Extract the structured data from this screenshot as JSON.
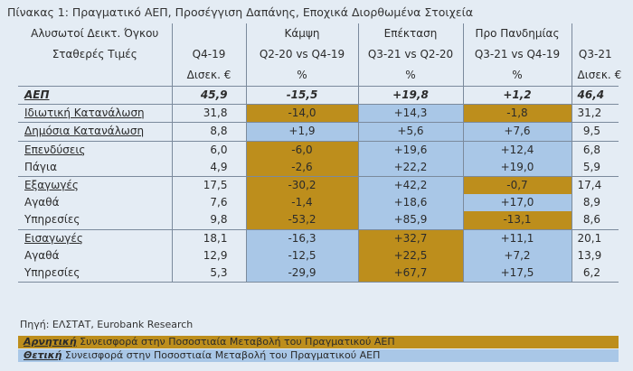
{
  "title": "Πίνακας 1: Πραγματικό ΑΕΠ, Προσέγγιση Δαπάνης, Εποχικά Διορθωμένα Στοιχεία",
  "header": {
    "row1": [
      "Αλυσωτοί Δεικτ. Όγκου",
      "",
      "Κάμψη",
      "Επέκταση",
      "Προ Πανδημίας",
      ""
    ],
    "row2": [
      "Σταθερές Τιμές",
      "Q4-19",
      "Q2-20 vs Q4-19",
      "Q3-21 vs Q2-20",
      "Q3-21 vs Q4-19",
      "Q3-21"
    ],
    "row3": [
      "",
      "Δισεκ. €",
      "%",
      "%",
      "%",
      "Δισεκ. €"
    ]
  },
  "rows": [
    {
      "label": "ΑΕΠ",
      "q4_19": "45,9",
      "decline": "-15,5",
      "expansion": "+19,8",
      "pre_pandemic": "+1,2",
      "q3_21": "46,4"
    },
    {
      "label": "Ιδιωτική Κατανάλωση",
      "q4_19": "31,8",
      "decline": "-14,0",
      "expansion": "+14,3",
      "pre_pandemic": "-1,8",
      "q3_21": "31,2"
    },
    {
      "label": "Δημόσια Κατανάλωση",
      "q4_19": "8,8",
      "decline": "+1,9",
      "expansion": "+5,6",
      "pre_pandemic": "+7,6",
      "q3_21": "9,5"
    },
    {
      "label": "Επενδύσεις",
      "q4_19": "6,0",
      "decline": "-6,0",
      "expansion": "+19,6",
      "pre_pandemic": "+12,4",
      "q3_21": "6,8"
    },
    {
      "label": "Πάγια",
      "q4_19": "4,9",
      "decline": "-2,6",
      "expansion": "+22,2",
      "pre_pandemic": "+19,0",
      "q3_21": "5,9"
    },
    {
      "label": "Εξαγωγές",
      "q4_19": "17,5",
      "decline": "-30,2",
      "expansion": "+42,2",
      "pre_pandemic": "-0,7",
      "q3_21": "17,4"
    },
    {
      "label": "Αγαθά",
      "q4_19": "7,6",
      "decline": "-1,4",
      "expansion": "+18,6",
      "pre_pandemic": "+17,0",
      "q3_21": "8,9"
    },
    {
      "label": "Υπηρεσίες",
      "q4_19": "9,8",
      "decline": "-53,2",
      "expansion": "+85,9",
      "pre_pandemic": "-13,1",
      "q3_21": "8,6"
    },
    {
      "label": "Εισαγωγές",
      "q4_19": "18,1",
      "decline": "-16,3",
      "expansion": "+32,7",
      "pre_pandemic": "+11,1",
      "q3_21": "20,1"
    },
    {
      "label": "Αγαθά",
      "q4_19": "12,9",
      "decline": "-12,5",
      "expansion": "+22,5",
      "pre_pandemic": "+7,2",
      "q3_21": "13,9"
    },
    {
      "label": "Υπηρεσίες",
      "q4_19": "5,3",
      "decline": "-29,9",
      "expansion": "+67,7",
      "pre_pandemic": "+17,5",
      "q3_21": "6,2"
    }
  ],
  "source": "Πηγή: ΕΛΣΤΑΤ, Eurobank Research",
  "legend": {
    "negative_keyword": "Αρνητική",
    "negative_text": " Συνεισφορά στην Ποσοστιαία Μεταβολή του Πραγματικού ΑΕΠ",
    "positive_keyword": "Θετική",
    "positive_text": " Συνεισφορά στην Ποσοστιαία Μεταβολή του Πραγματικού ΑΕΠ"
  },
  "colors": {
    "negative_contribution": "#bd8e1c",
    "positive_contribution": "#a9c7e7",
    "background": "#e4ecf4"
  }
}
